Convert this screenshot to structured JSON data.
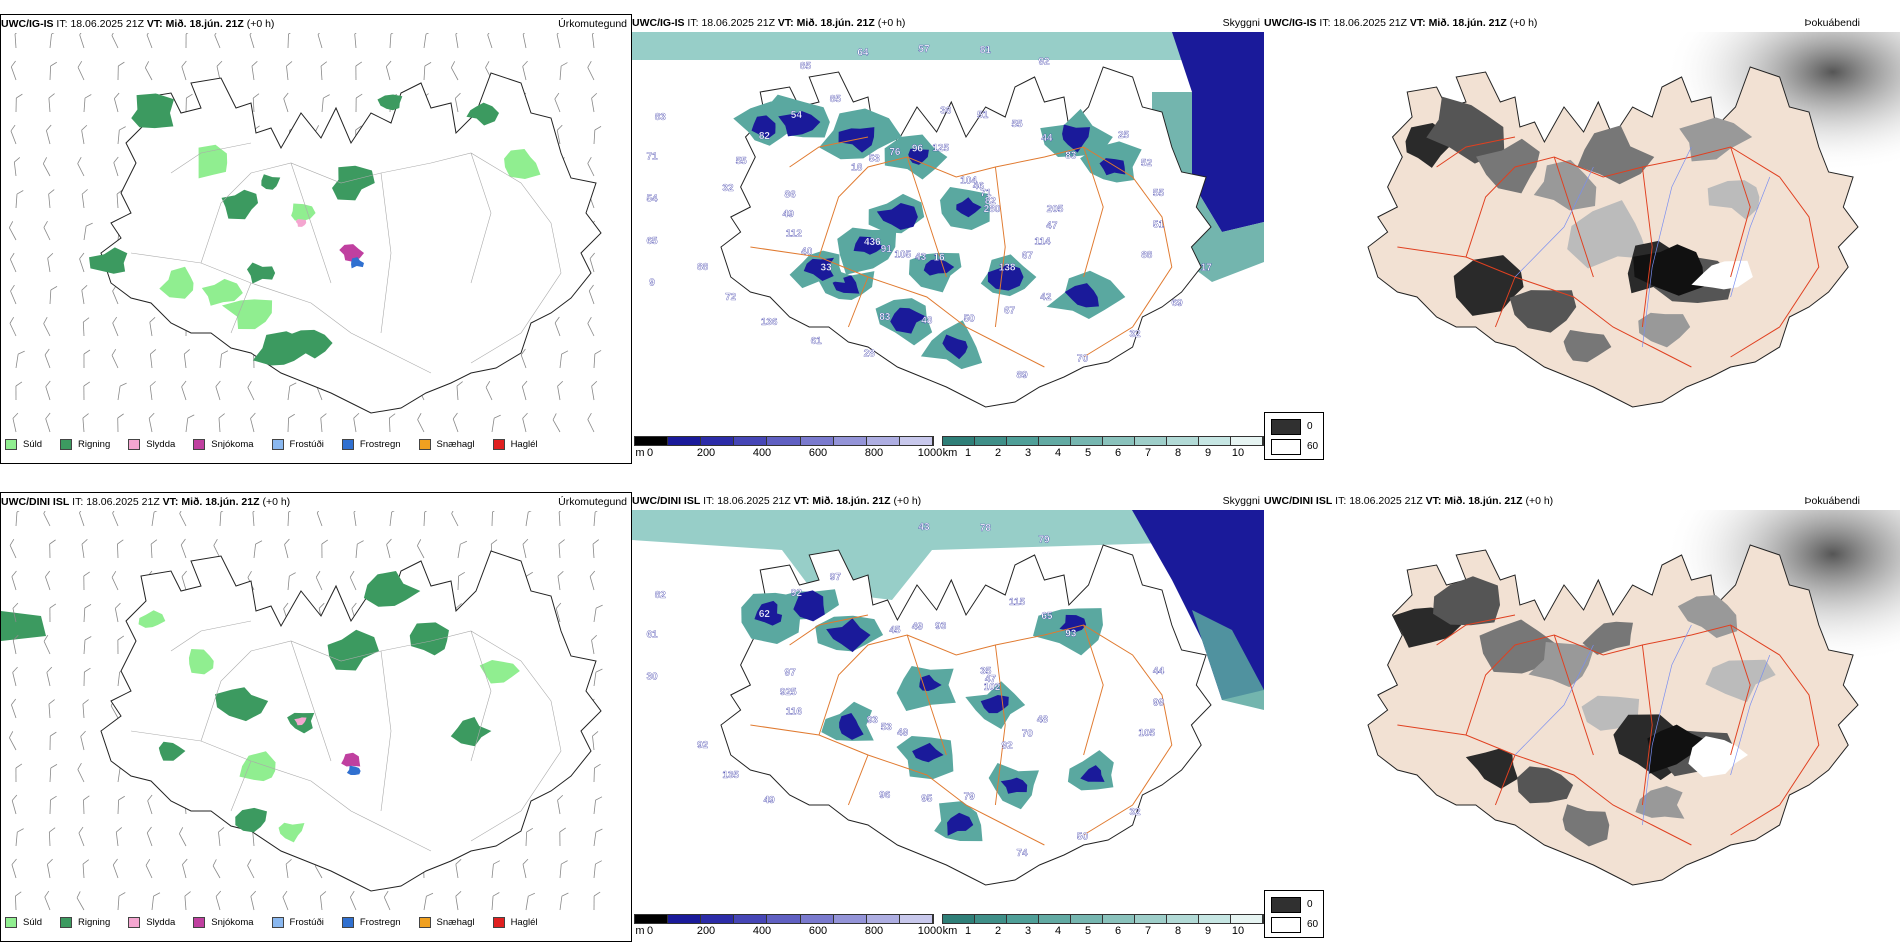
{
  "rows": [
    {
      "model": "UWC/IG-IS",
      "it_label": "IT:",
      "it_value": "18.06.2025 21Z",
      "vt_label": "VT:",
      "vt_value": "Mið. 18.jún. 21Z",
      "offset": "(+0 h)",
      "precip_title": "Úrkomutegund",
      "vis_title": "Skyggni",
      "fog_title": "Þokuábendi",
      "height_labels": [
        "280",
        "436",
        "125",
        "138",
        "86",
        "83",
        "83",
        "85",
        "88",
        "88",
        "92",
        "89",
        "83",
        "82",
        "91",
        "96",
        "67",
        "49",
        "44",
        "48",
        "54",
        "51",
        "72",
        "81",
        "70",
        "71",
        "71",
        "105",
        "76",
        "114",
        "112",
        "55",
        "50",
        "82",
        "55",
        "136",
        "57",
        "32",
        "54",
        "46",
        "43",
        "53",
        "47",
        "40",
        "51",
        "67",
        "55",
        "52",
        "61",
        "64",
        "69",
        "65",
        "104",
        "16",
        "18",
        "205",
        "33",
        "36",
        "42",
        "32",
        "25",
        "28",
        "85",
        "17",
        "9"
      ]
    },
    {
      "model": "UWC/DINI ISL",
      "it_label": "IT:",
      "it_value": "18.06.2025 21Z",
      "vt_label": "VT:",
      "vt_value": "Mið. 18.jún. 21Z",
      "offset": "(+0 h)",
      "precip_title": "Úrkomutegund",
      "vis_title": "Skyggni",
      "fog_title": "Þokuábendi",
      "height_labels": [
        "102",
        "93",
        "93",
        "92",
        "97",
        "93",
        "96",
        "97",
        "105",
        "92",
        "79",
        "74",
        "82",
        "47",
        "53",
        "49",
        "70",
        "925",
        "65",
        "95",
        "92",
        "99",
        "135",
        "78",
        "50",
        "61",
        "35",
        "49",
        "45",
        "48",
        "116",
        "115",
        "79",
        "62",
        "44",
        "49",
        "43",
        "32",
        "30"
      ]
    }
  ],
  "precip_legend": [
    {
      "label": "Súld",
      "color": "#90ee90"
    },
    {
      "label": "Rigning",
      "color": "#3c9a60"
    },
    {
      "label": "Slydda",
      "color": "#f4a6d0"
    },
    {
      "label": "Snjókoma",
      "color": "#c040a0"
    },
    {
      "label": "Frostúði",
      "color": "#8ab8f0"
    },
    {
      "label": "Frostregn",
      "color": "#3070d0"
    },
    {
      "label": "Snæhagl",
      "color": "#f0a020"
    },
    {
      "label": "Haglél",
      "color": "#e02020"
    }
  ],
  "height_scale": {
    "unit": "m",
    "ticks": [
      "0",
      "200",
      "400",
      "600",
      "800",
      "1000"
    ]
  },
  "vis_scale": {
    "unit": "km",
    "ticks": [
      "1",
      "2",
      "3",
      "4",
      "5",
      "6",
      "7",
      "8",
      "9",
      "10"
    ]
  },
  "fog_key": {
    "dark_label": "0",
    "light_label": "60"
  },
  "colors": {
    "rain": "#3c9a60",
    "drizzle": "#90ee90",
    "snow": "#c040a0",
    "sleet": "#f4a6d0",
    "freezing_rain": "#3070d0",
    "low_cloud": "#1a1a9a",
    "visibility": "#5aa8a0",
    "roads": "#e07a30",
    "land_fog": "#f2e1d3",
    "fog_dark": "#303030"
  }
}
